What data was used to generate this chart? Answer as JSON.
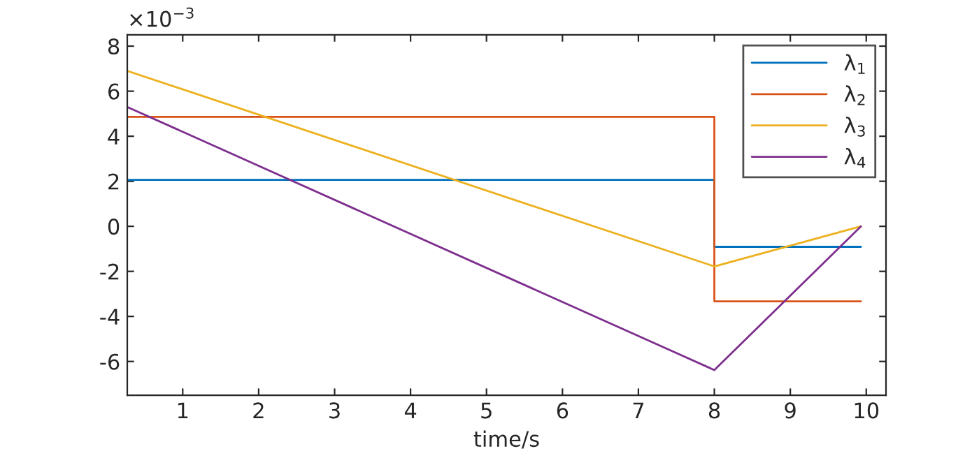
{
  "chart_data": {
    "type": "line",
    "xlabel": "time/s",
    "xlim": [
      0.27,
      10.26
    ],
    "ylim": [
      -7.5,
      8.5
    ],
    "xticks": [
      1,
      2,
      3,
      4,
      5,
      6,
      7,
      8,
      9,
      10
    ],
    "yticks": [
      -6,
      -4,
      -2,
      0,
      2,
      4,
      6,
      8
    ],
    "annotations": [
      "×10$^{−3}$"
    ],
    "legend": "top right",
    "grid": false,
    "series": [
      {
        "name": "λ$_{1}$",
        "color": "#0072bd",
        "x": [
          0.27,
          8,
          8,
          9.93
        ],
        "values": [
          2.06,
          2.06,
          -0.91,
          -0.91
        ]
      },
      {
        "name": "λ$_{2}$",
        "color": "#d95319",
        "x": [
          0.27,
          8,
          8,
          9.93
        ],
        "values": [
          4.86,
          4.86,
          -3.33,
          -3.33
        ]
      },
      {
        "name": "λ$_{3}$",
        "color": "#edb120",
        "x": [
          0.27,
          8,
          9.93
        ],
        "values": [
          6.9,
          -1.78,
          0
        ]
      },
      {
        "name": "λ$_{4}$",
        "color": "#7e2f8e",
        "x": [
          0.27,
          8,
          9.93
        ],
        "values": [
          5.3,
          -6.38,
          0
        ]
      }
    ]
  }
}
